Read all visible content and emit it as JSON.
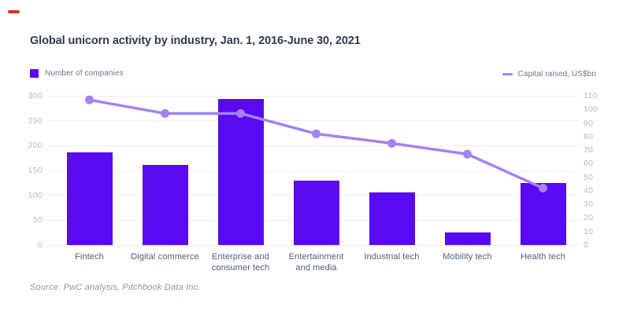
{
  "title": "Global unicorn activity by industry, Jan. 1, 2016-June 30, 2021",
  "legend": {
    "bars_label": "Number of companies",
    "line_label": "Capital raised, US$bn"
  },
  "source": "Source: PwC analysis, Pitchbook Data Inc.",
  "colors": {
    "bar": "#5a0af2",
    "line": "#a383ee",
    "point": "#a383ee",
    "title_text": "#2e3a52",
    "tick_text": "#b4b9c7",
    "category_text": "#505c75",
    "legend_text": "#6f7589",
    "source_text": "#8d93a5",
    "gridline": "#ededf2",
    "brand_dash": "#e0301e"
  },
  "chart_data": {
    "type": "bar",
    "note": "combo chart: bars on left axis, line with round markers on right axis",
    "categories": [
      "Fintech",
      "Digital commerce",
      "Enterprise and consumer tech",
      "Entertainment and media",
      "Industrial tech",
      "Mobility tech",
      "Health tech"
    ],
    "category_label_lines": [
      [
        "Fintech"
      ],
      [
        "Digital commerce"
      ],
      [
        "Enterprise and",
        "consumer tech"
      ],
      [
        "Entertainment",
        "and media"
      ],
      [
        "Industrial tech"
      ],
      [
        "Mobility tech"
      ],
      [
        "Health tech"
      ]
    ],
    "series": [
      {
        "name": "Number of companies",
        "type": "bar",
        "axis": "left",
        "values": [
          187,
          161,
          293,
          130,
          106,
          26,
          125
        ]
      },
      {
        "name": "Capital raised, US$bn",
        "type": "line",
        "axis": "right",
        "values": [
          107,
          97,
          97,
          82,
          75,
          67,
          42
        ]
      }
    ],
    "title": "Global unicorn activity by industry, Jan. 1, 2016-June 30, 2021",
    "xlabel": "",
    "ylabel_left": "Number of companies",
    "ylabel_right": "Capital raised, US$bn",
    "left_axis": {
      "min": 0,
      "max": 300,
      "ticks": [
        0,
        50,
        100,
        150,
        200,
        250,
        300
      ]
    },
    "right_axis": {
      "min": 0,
      "max": 110,
      "ticks": [
        0,
        10,
        20,
        30,
        40,
        50,
        60,
        70,
        80,
        90,
        100,
        110
      ]
    },
    "grid": "horizontal-only",
    "legend_position": "top"
  }
}
